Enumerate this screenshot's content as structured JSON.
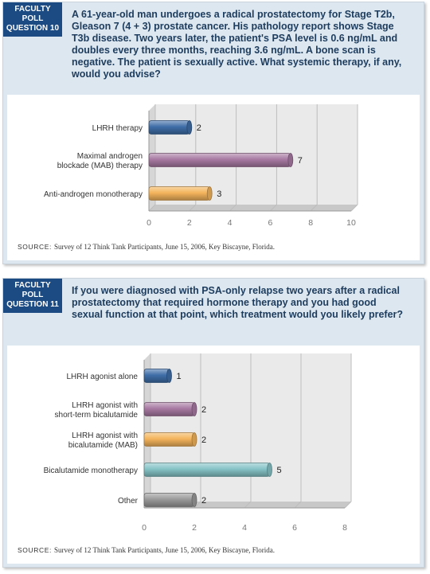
{
  "polls": [
    {
      "tag": [
        "FACULTY",
        "POLL",
        "QUESTION 10"
      ],
      "question": "A 61-year-old man undergoes a radical prostatectomy for Stage T2b, Gleason 7 (4 + 3) prostate cancer. His pathology report shows Stage T3b disease. Two years later, the patient's PSA level is 0.6 ng/mL and doubles every three months, reaching 3.6 ng/mL. A bone scan is negative. The patient is sexually active. What systemic therapy, if any, would you advise?",
      "source_label": "SOURCE:",
      "source_text": "Survey of 12 Think Tank Participants, June 15, 2006, Key Biscayne, Florida."
    },
    {
      "tag": [
        "FACULTY",
        "POLL",
        "QUESTION 11"
      ],
      "question": "If you were diagnosed with PSA-only relapse two years after a radical prostatectomy that required hormone therapy and you had good sexual function at that point, which treatment would you likely prefer?",
      "source_label": "SOURCE:",
      "source_text": "Survey of 12 Think Tank Participants, June 15, 2006, Key Biscayne, Florida."
    }
  ],
  "chart_data": [
    {
      "type": "bar",
      "orientation": "horizontal",
      "categories": [
        [
          "LHRH therapy"
        ],
        [
          "Maximal androgen",
          "blockade (MAB) therapy"
        ],
        [
          "Anti-androgen monotherapy"
        ]
      ],
      "values": [
        2,
        7,
        3
      ],
      "colors": [
        "#3f6ea8",
        "#a87aa3",
        "#f4b45c"
      ],
      "xlim": [
        0,
        10
      ],
      "xticks": [
        0,
        2,
        4,
        6,
        8,
        10
      ],
      "grid": true
    },
    {
      "type": "bar",
      "orientation": "horizontal",
      "categories": [
        [
          "LHRH agonist alone"
        ],
        [
          "LHRH agonist with",
          "short-term bicalutamide"
        ],
        [
          "LHRH agonist with",
          "bicalutamide (MAB)"
        ],
        [
          "Bicalutamide monotherapy"
        ],
        [
          "Other"
        ]
      ],
      "values": [
        1,
        2,
        2,
        5,
        2
      ],
      "colors": [
        "#3f6ea8",
        "#a87aa3",
        "#f4b45c",
        "#86c3c7",
        "#9a9a9a"
      ],
      "xlim": [
        0,
        8
      ],
      "xticks": [
        0,
        2,
        4,
        6,
        8
      ],
      "grid": true
    }
  ]
}
